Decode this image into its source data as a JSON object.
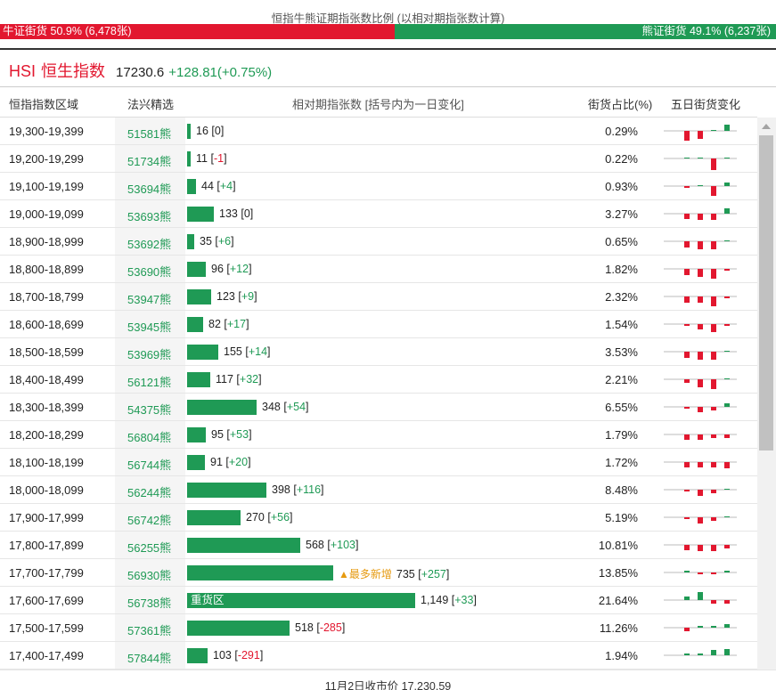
{
  "title": "恒指牛熊证期指张数比例 (以相对期指张数计算)",
  "ratio": {
    "bull_label": "牛证街货",
    "bull_pct": "50.9%",
    "bull_count": "(6,478张)",
    "bear_label": "熊证街货",
    "bear_pct": "49.1%",
    "bear_count": "(6,237张)",
    "bull_fraction": 0.509
  },
  "index": {
    "code": "HSI",
    "name": "恒生指数",
    "price": "17230.6",
    "change": "+128.81(+0.75%)"
  },
  "headers": {
    "range": "恒指指数区域",
    "warrant": "法兴精选",
    "bar": "相对期指张数 [括号内为一日变化]",
    "pct": "街货占比(%)",
    "five_day": "五日街货变化"
  },
  "colors": {
    "red": "#e2172f",
    "green": "#1f9a55",
    "tag": "#e69a10"
  },
  "bar_scale_max": 1149,
  "rows": [
    {
      "range": "19,300-19,399",
      "warrant": "51581熊",
      "count": 16,
      "count_text": "16",
      "change": "0",
      "pct": "0.29%",
      "spark": [
        -6,
        -5,
        0,
        4,
        0
      ]
    },
    {
      "range": "19,200-19,299",
      "warrant": "51734熊",
      "count": 11,
      "count_text": "11",
      "change": "-1",
      "pct": "0.22%",
      "spark": [
        0,
        0,
        -7,
        0,
        0
      ]
    },
    {
      "range": "19,100-19,199",
      "warrant": "53694熊",
      "count": 44,
      "count_text": "44",
      "change": "+4",
      "pct": "0.93%",
      "spark": [
        -1,
        0,
        -6,
        2,
        1
      ]
    },
    {
      "range": "19,000-19,099",
      "warrant": "53693熊",
      "count": 133,
      "count_text": "133",
      "change": "0",
      "pct": "3.27%",
      "spark": [
        -3,
        -4,
        -4,
        3,
        0
      ]
    },
    {
      "range": "18,900-18,999",
      "warrant": "53692熊",
      "count": 35,
      "count_text": "35",
      "change": "+6",
      "pct": "0.65%",
      "spark": [
        -4,
        -5,
        -5,
        0,
        3
      ]
    },
    {
      "range": "18,800-18,899",
      "warrant": "53690熊",
      "count": 96,
      "count_text": "96",
      "change": "+12",
      "pct": "1.82%",
      "spark": [
        -4,
        -5,
        -6,
        -1,
        1
      ]
    },
    {
      "range": "18,700-18,799",
      "warrant": "53947熊",
      "count": 123,
      "count_text": "123",
      "change": "+9",
      "pct": "2.32%",
      "spark": [
        -4,
        -4,
        -6,
        -1,
        1
      ]
    },
    {
      "range": "18,600-18,699",
      "warrant": "53945熊",
      "count": 82,
      "count_text": "82",
      "change": "+17",
      "pct": "1.54%",
      "spark": [
        -1,
        -3,
        -5,
        -1,
        4
      ]
    },
    {
      "range": "18,500-18,599",
      "warrant": "53969熊",
      "count": 155,
      "count_text": "155",
      "change": "+14",
      "pct": "3.53%",
      "spark": [
        -4,
        -5,
        -5,
        0,
        1
      ]
    },
    {
      "range": "18,400-18,499",
      "warrant": "56121熊",
      "count": 117,
      "count_text": "117",
      "change": "+32",
      "pct": "2.21%",
      "spark": [
        -2,
        -5,
        -6,
        0,
        2
      ]
    },
    {
      "range": "18,300-18,399",
      "warrant": "54375熊",
      "count": 348,
      "count_text": "348",
      "change": "+54",
      "pct": "6.55%",
      "spark": [
        -1,
        -3,
        -2,
        2,
        5
      ]
    },
    {
      "range": "18,200-18,299",
      "warrant": "56804熊",
      "count": 95,
      "count_text": "95",
      "change": "+53",
      "pct": "1.79%",
      "spark": [
        -3,
        -3,
        -2,
        -2,
        6
      ]
    },
    {
      "range": "18,100-18,199",
      "warrant": "56744熊",
      "count": 91,
      "count_text": "91",
      "change": "+20",
      "pct": "1.72%",
      "spark": [
        -3,
        -3,
        -3,
        -4,
        4
      ]
    },
    {
      "range": "18,000-18,099",
      "warrant": "56244熊",
      "count": 398,
      "count_text": "398",
      "change": "+116",
      "pct": "8.48%",
      "spark": [
        -1,
        -4,
        -2,
        0,
        2
      ]
    },
    {
      "range": "17,900-17,999",
      "warrant": "56742熊",
      "count": 270,
      "count_text": "270",
      "change": "+56",
      "pct": "5.19%",
      "spark": [
        -1,
        -4,
        -2,
        0,
        2
      ]
    },
    {
      "range": "17,800-17,899",
      "warrant": "56255熊",
      "count": 568,
      "count_text": "568",
      "change": "+103",
      "pct": "10.81%",
      "spark": [
        -3,
        -4,
        -4,
        -2,
        3
      ]
    },
    {
      "range": "17,700-17,799",
      "warrant": "56930熊",
      "count": 735,
      "count_text": "735",
      "change": "+257",
      "pct": "13.85%",
      "tag": "▲最多新增",
      "spark": [
        1,
        -1,
        -1,
        1,
        5
      ]
    },
    {
      "range": "17,600-17,699",
      "warrant": "56738熊",
      "count": 1149,
      "count_text": "1,149",
      "change": "+33",
      "pct": "21.64%",
      "label": "重货区",
      "spark": [
        2,
        5,
        -2,
        -2,
        2
      ]
    },
    {
      "range": "17,500-17,599",
      "warrant": "57361熊",
      "count": 518,
      "count_text": "518",
      "change": "-285",
      "pct": "11.26%",
      "spark": [
        -2,
        1,
        1,
        2,
        -4
      ]
    },
    {
      "range": "17,400-17,499",
      "warrant": "57844熊",
      "count": 103,
      "count_text": "103",
      "change": "-291",
      "pct": "1.94%",
      "spark": [
        1,
        1,
        3,
        4,
        -6
      ]
    }
  ],
  "footer": "11月2日收市价 17,230.59"
}
